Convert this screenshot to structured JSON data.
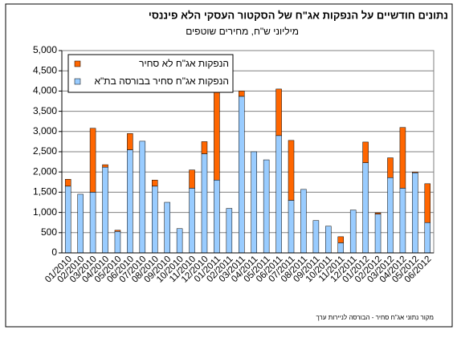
{
  "chart_data": {
    "type": "stacked_bar",
    "title": "נתונים חודשיים על הנפקות אג\"ח של הסקטור העסקי הלא פיננסי",
    "subtitle": "מיליוני ש\"ח, מחירים שוטפים",
    "source": "מקור נתוני אג\"ח סחיר - הבורסה לניירות ערך",
    "categories": [
      "01/2010",
      "02/2010",
      "03/2010",
      "04/2010",
      "05/2010",
      "06/2010",
      "07/2010",
      "08/2010",
      "09/2010",
      "10/2010",
      "11/2010",
      "12/2010",
      "01/2011",
      "02/2011",
      "03/2011",
      "04/2011",
      "05/2011",
      "06/2011",
      "07/2011",
      "08/2011",
      "09/2011",
      "10/2011",
      "11/2011",
      "12/2011",
      "01/2012",
      "02/2012",
      "03/2012",
      "04/2012",
      "05/2012",
      "06/2012"
    ],
    "series": [
      {
        "name": "הנפקות אג\"ח סחיר בבורסה בת\"א",
        "color": "#99ccff",
        "values": [
          1650,
          1450,
          1500,
          2120,
          530,
          2550,
          2760,
          1650,
          1250,
          600,
          1600,
          2450,
          1800,
          1100,
          3870,
          2500,
          2300,
          2900,
          1300,
          1570,
          800,
          660,
          250,
          1060,
          2230,
          960,
          1860,
          1600,
          1980,
          750
        ]
      },
      {
        "name": "הנפקות אג\"ח לא סחיר",
        "color": "#ff6600",
        "values": [
          170,
          0,
          1580,
          60,
          30,
          400,
          0,
          150,
          0,
          0,
          450,
          300,
          2200,
          0,
          130,
          0,
          0,
          1150,
          1480,
          0,
          0,
          0,
          150,
          0,
          510,
          30,
          490,
          1500,
          20,
          960
        ]
      }
    ],
    "ylim": [
      0,
      5000
    ],
    "yticks": [
      0,
      500,
      {
        "value": 1000,
        "label": "1,000"
      },
      {
        "value": 1500,
        "label": "1,500"
      },
      {
        "value": 2000,
        "label": "2,000"
      },
      {
        "value": 2500,
        "label": "2,500"
      },
      {
        "value": 3000,
        "label": "3,000"
      },
      {
        "value": 3500,
        "label": "3,500"
      },
      {
        "value": 4000,
        "label": "4,000"
      },
      {
        "value": 4500,
        "label": "4,500"
      },
      {
        "value": 5000,
        "label": "5,000"
      }
    ],
    "grid": true
  }
}
